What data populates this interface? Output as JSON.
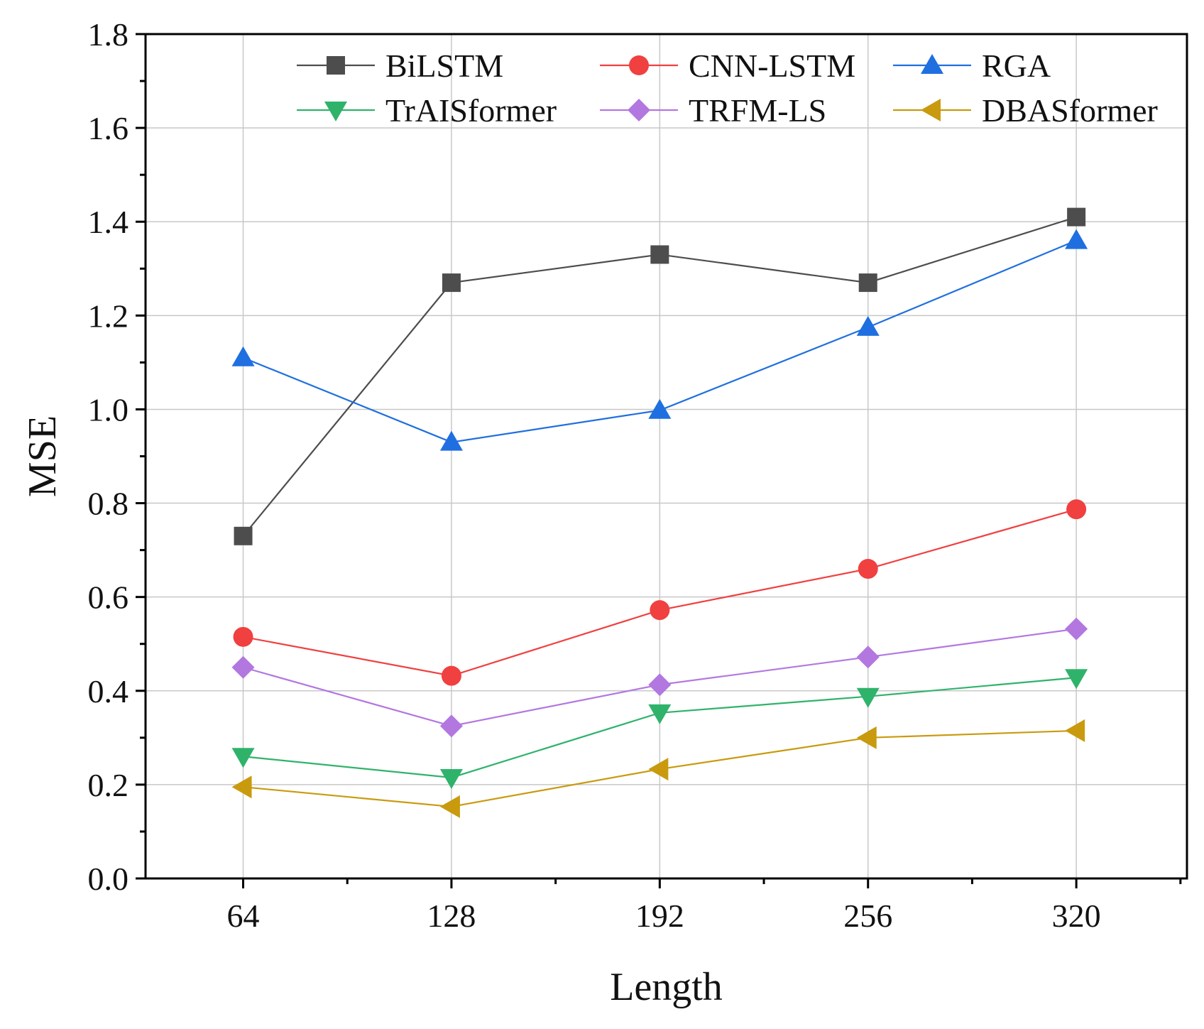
{
  "chart_data": {
    "type": "line",
    "title": "",
    "xlabel": "Length",
    "ylabel": "MSE",
    "x": [
      64,
      128,
      192,
      256,
      320
    ],
    "x_tick_labels": [
      "64",
      "128",
      "192",
      "256",
      "320"
    ],
    "xlim": [
      34,
      354
    ],
    "ylim": [
      0.0,
      1.8
    ],
    "y_ticks": [
      0.0,
      0.2,
      0.4,
      0.6,
      0.8,
      1.0,
      1.2,
      1.4,
      1.6,
      1.8
    ],
    "y_tick_labels": [
      "0.0",
      "0.2",
      "0.4",
      "0.6",
      "0.8",
      "1.0",
      "1.2",
      "1.4",
      "1.6",
      "1.8"
    ],
    "grid": true,
    "legend_position": "top",
    "series": [
      {
        "name": "BiLSTM",
        "marker": "square",
        "color": "#4d4d4d",
        "values": [
          0.73,
          1.27,
          1.33,
          1.27,
          1.41
        ]
      },
      {
        "name": "CNN-LSTM",
        "marker": "circle",
        "color": "#f04040",
        "values": [
          0.515,
          0.432,
          0.572,
          0.66,
          0.787
        ]
      },
      {
        "name": "RGA",
        "marker": "triangle-up",
        "color": "#1f6fe0",
        "values": [
          1.11,
          0.93,
          0.998,
          1.175,
          1.36
        ]
      },
      {
        "name": "TrAISformer",
        "marker": "triangle-down",
        "color": "#2fb36b",
        "values": [
          0.26,
          0.215,
          0.353,
          0.388,
          0.428
        ]
      },
      {
        "name": "TRFM-LS",
        "marker": "diamond",
        "color": "#b377e0",
        "values": [
          0.45,
          0.325,
          0.413,
          0.472,
          0.532
        ]
      },
      {
        "name": "DBASformer",
        "marker": "triangle-left",
        "color": "#c99a0e",
        "values": [
          0.195,
          0.153,
          0.233,
          0.3,
          0.315
        ]
      }
    ]
  }
}
